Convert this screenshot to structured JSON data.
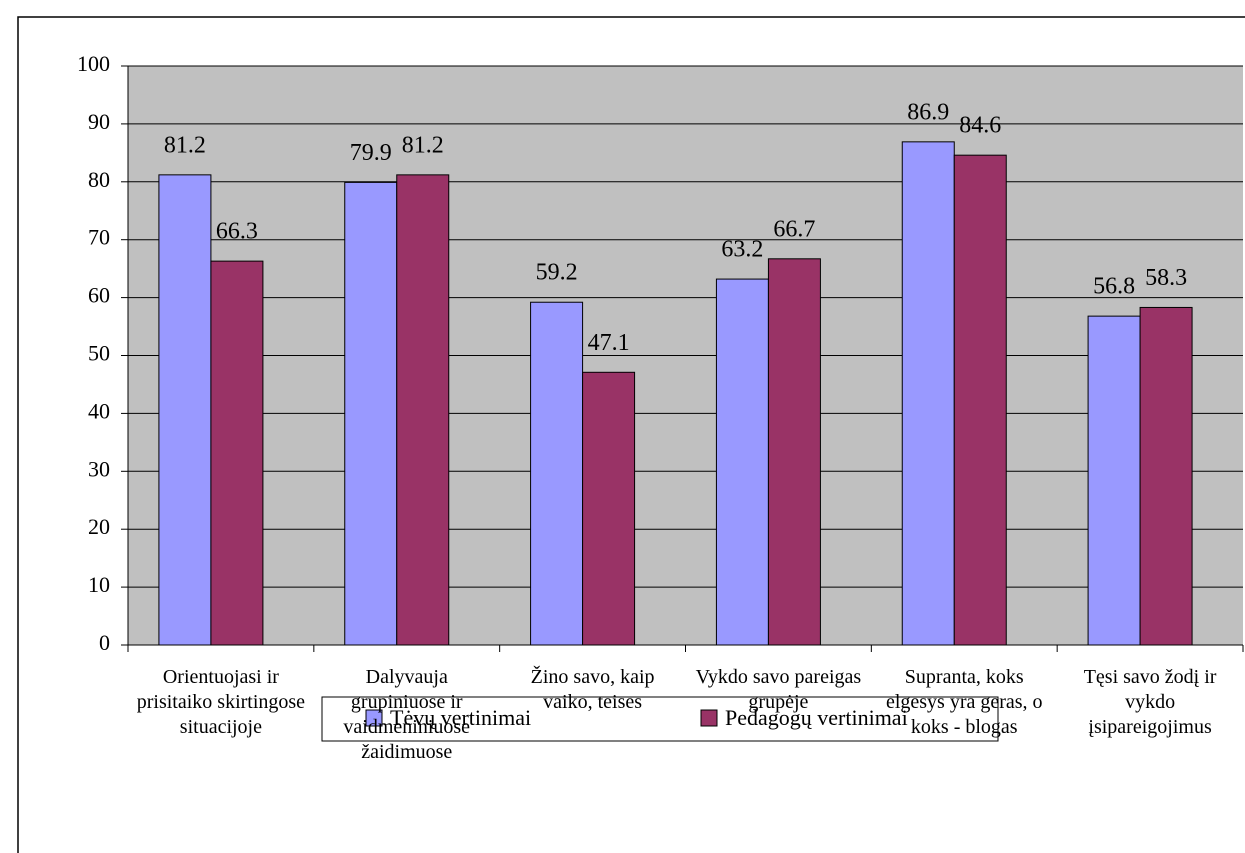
{
  "chart_data": {
    "type": "bar",
    "categories": [
      "Orientuojasi ir prisitaiko skirtingose situacijoje",
      "Dalyvauja grupiniuose ir vaidmeniniuose žaidimuose",
      "Žino savo, kaip vaiko, teises",
      "Vykdo savo pareigas grupėje",
      "Supranta, koks elgesys yra geras, o koks - blogas",
      "Tęsi savo žodį ir vykdo įsipareigojimus"
    ],
    "series": [
      {
        "name": "Tėvų vertinimai",
        "color": "#9999ff",
        "values": [
          81.2,
          79.9,
          59.2,
          63.2,
          86.9,
          56.8
        ]
      },
      {
        "name": "Pedagogų vertinimai",
        "color": "#993366",
        "values": [
          66.3,
          81.2,
          47.1,
          66.7,
          84.6,
          58.3
        ]
      }
    ],
    "ylim": [
      0,
      100
    ],
    "yticks": [
      0,
      10,
      20,
      30,
      40,
      50,
      60,
      70,
      80,
      90,
      100
    ],
    "grid": true,
    "legend": "bottom",
    "plot_background": "#c0c0c0"
  }
}
